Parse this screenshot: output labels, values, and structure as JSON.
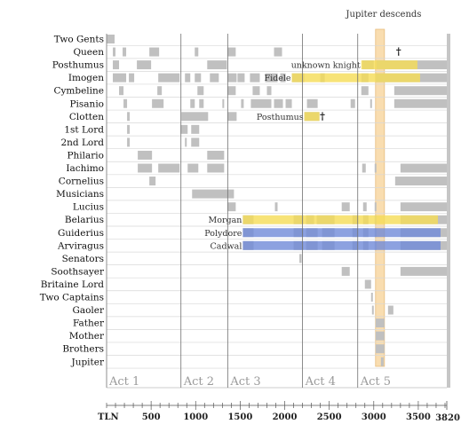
{
  "chart_data": {
    "type": "timeline",
    "title": "",
    "xlabel": "TLN",
    "x_axis_end_label": "3820",
    "xlim": [
      0,
      3820
    ],
    "x_ticks": [
      500,
      1000,
      1500,
      2000,
      2500,
      3000,
      3500
    ],
    "x_minor_step": 100,
    "acts": [
      {
        "label": "Act 1",
        "start": 0
      },
      {
        "label": "Act 2",
        "start": 835
      },
      {
        "label": "Act 3",
        "start": 1360
      },
      {
        "label": "Act 4",
        "start": 2200
      },
      {
        "label": "Act 5",
        "start": 2820
      }
    ],
    "characters": [
      {
        "name": "Two Gents",
        "segments": [
          [
            0,
            90
          ]
        ]
      },
      {
        "name": "Queen",
        "segments": [
          [
            70,
            100
          ],
          [
            180,
            220
          ],
          [
            480,
            590
          ],
          [
            990,
            1030
          ],
          [
            1360,
            1450
          ],
          [
            1880,
            1970
          ]
        ]
      },
      {
        "name": "Posthumus",
        "segments": [
          [
            70,
            140
          ],
          [
            340,
            500
          ],
          [
            1130,
            1350
          ],
          [
            2870,
            3000
          ],
          [
            3030,
            3820
          ]
        ]
      },
      {
        "name": "Imogen",
        "segments": [
          [
            70,
            220
          ],
          [
            250,
            310
          ],
          [
            580,
            820
          ],
          [
            880,
            940
          ],
          [
            990,
            1060
          ],
          [
            1160,
            1260
          ],
          [
            1360,
            1460
          ],
          [
            1470,
            1550
          ],
          [
            1610,
            1720
          ],
          [
            1780,
            1920
          ],
          [
            1950,
            2010
          ],
          [
            2080,
            2220
          ],
          [
            2400,
            2450
          ],
          [
            2860,
            2940
          ],
          [
            3020,
            3820
          ]
        ]
      },
      {
        "name": "Cymbeline",
        "segments": [
          [
            140,
            190
          ],
          [
            570,
            620
          ],
          [
            1020,
            1090
          ],
          [
            1360,
            1450
          ],
          [
            1640,
            1720
          ],
          [
            1800,
            1850
          ],
          [
            2860,
            2940
          ],
          [
            3230,
            3820
          ]
        ]
      },
      {
        "name": "Pisanio",
        "segments": [
          [
            190,
            230
          ],
          [
            510,
            640
          ],
          [
            940,
            990
          ],
          [
            1040,
            1090
          ],
          [
            1300,
            1320
          ],
          [
            1510,
            1540
          ],
          [
            1620,
            1850
          ],
          [
            1880,
            1980
          ],
          [
            2010,
            2080
          ],
          [
            2250,
            2370
          ],
          [
            2740,
            2790
          ],
          [
            2960,
            2980
          ],
          [
            3230,
            3820
          ]
        ]
      },
      {
        "name": "Clotten",
        "segments": [
          [
            230,
            260
          ],
          [
            840,
            1140
          ],
          [
            1360,
            1460
          ],
          [
            2220,
            2390
          ]
        ]
      },
      {
        "name": "1st Lord",
        "segments": [
          [
            230,
            260
          ],
          [
            830,
            910
          ],
          [
            950,
            1040
          ]
        ]
      },
      {
        "name": "2nd Lord",
        "segments": [
          [
            230,
            260
          ],
          [
            880,
            900
          ],
          [
            950,
            1040
          ]
        ]
      },
      {
        "name": "Philario",
        "segments": [
          [
            350,
            510
          ],
          [
            1130,
            1320
          ]
        ]
      },
      {
        "name": "Iachimo",
        "segments": [
          [
            350,
            510
          ],
          [
            580,
            820
          ],
          [
            910,
            1030
          ],
          [
            1130,
            1320
          ],
          [
            2870,
            2910
          ],
          [
            3010,
            3030
          ],
          [
            3300,
            3820
          ]
        ]
      },
      {
        "name": "Cornelius",
        "segments": [
          [
            480,
            550
          ],
          [
            3240,
            3820
          ]
        ]
      },
      {
        "name": "Musicians",
        "segments": [
          [
            960,
            1430
          ]
        ]
      },
      {
        "name": "Lucius",
        "segments": [
          [
            1360,
            1450
          ],
          [
            1890,
            1920
          ],
          [
            2640,
            2730
          ],
          [
            2880,
            2920
          ],
          [
            3010,
            3030
          ],
          [
            3300,
            3820
          ]
        ]
      },
      {
        "name": "Belarius",
        "segments": [
          [
            1530,
            1650
          ],
          [
            2100,
            2210
          ],
          [
            2240,
            2330
          ],
          [
            2360,
            2560
          ],
          [
            2760,
            2820
          ],
          [
            2880,
            2940
          ],
          [
            3010,
            3030
          ],
          [
            3300,
            3820
          ]
        ]
      },
      {
        "name": "Guiderius",
        "segments": [
          [
            1530,
            1650
          ],
          [
            2100,
            2210
          ],
          [
            2240,
            2370
          ],
          [
            2420,
            2560
          ],
          [
            2760,
            2820
          ],
          [
            2880,
            2940
          ],
          [
            3010,
            3030
          ],
          [
            3300,
            3820
          ]
        ]
      },
      {
        "name": "Arviragus",
        "segments": [
          [
            1530,
            1650
          ],
          [
            2100,
            2210
          ],
          [
            2240,
            2370
          ],
          [
            2420,
            2560
          ],
          [
            2760,
            2820
          ],
          [
            2880,
            2940
          ],
          [
            3010,
            3030
          ],
          [
            3300,
            3820
          ]
        ]
      },
      {
        "name": "Senators",
        "segments": [
          [
            2165,
            2190
          ]
        ]
      },
      {
        "name": "Soothsayer",
        "segments": [
          [
            2640,
            2730
          ],
          [
            3300,
            3820
          ]
        ]
      },
      {
        "name": "Britaine Lord",
        "segments": [
          [
            2900,
            2970
          ]
        ]
      },
      {
        "name": "Two Captains",
        "segments": [
          [
            2970,
            2990
          ]
        ]
      },
      {
        "name": "Gaoler",
        "segments": [
          [
            2980,
            3000
          ],
          [
            3160,
            3220
          ]
        ]
      },
      {
        "name": "Father",
        "segments": [
          [
            3020,
            3120
          ]
        ]
      },
      {
        "name": "Mother",
        "segments": [
          [
            3020,
            3120
          ]
        ]
      },
      {
        "name": "Brothers",
        "segments": [
          [
            3020,
            3120
          ]
        ]
      },
      {
        "name": "Jupiter",
        "segments": [
          [
            3080,
            3110
          ]
        ]
      }
    ],
    "disguises": [
      {
        "row": "Posthumus",
        "label": "unknown knight",
        "start": 2860,
        "end": 3490,
        "color": "#f5dc55"
      },
      {
        "row": "Imogen",
        "label": "Fidele",
        "start": 2080,
        "end": 3520,
        "color": "#f5dc55"
      },
      {
        "row": "Clotten",
        "label": "Posthumus",
        "start": 2220,
        "end": 2390,
        "color": "#f5dc55"
      },
      {
        "row": "Belarius",
        "label": "Morgan",
        "start": 1530,
        "end": 3720,
        "color": "#f5dc55"
      },
      {
        "row": "Guiderius",
        "label": "Polydore",
        "start": 1530,
        "end": 3750,
        "color": "#6f8ad8"
      },
      {
        "row": "Arviragus",
        "label": "Cadwal",
        "start": 1530,
        "end": 3750,
        "color": "#6f8ad8"
      }
    ],
    "deaths": [
      {
        "row": "Queen",
        "at": 3250
      },
      {
        "row": "Clotten",
        "at": 2395
      }
    ],
    "death_symbol": "†",
    "highlight": {
      "label": "Jupiter descends",
      "start": 3020,
      "end": 3120,
      "color": "#f9ddb0"
    },
    "colors": {
      "presence": "#c0c0c0",
      "gridline": "#d8d8d8",
      "act_line": "#707070",
      "text": "#111111"
    },
    "grid": true,
    "legend": "none"
  }
}
